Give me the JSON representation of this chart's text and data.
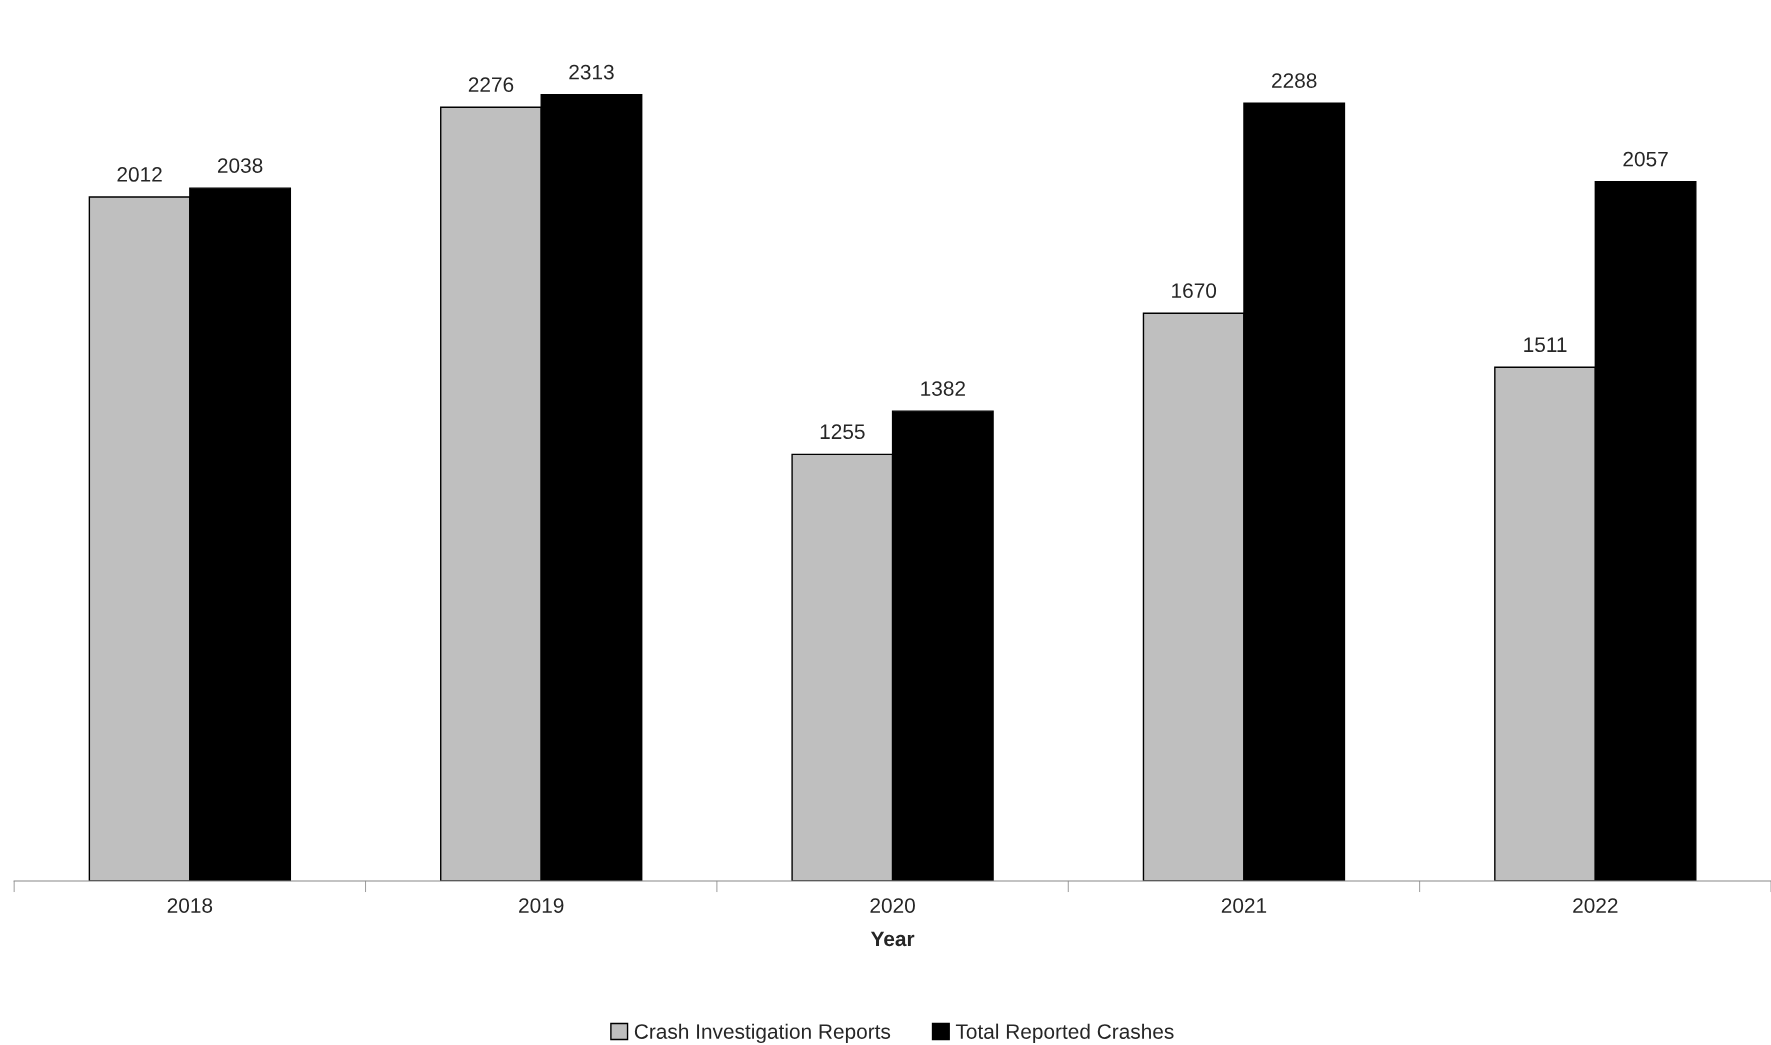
{
  "chart_data": {
    "type": "bar",
    "xlabel": "Year",
    "categories": [
      "2018",
      "2019",
      "2020",
      "2021",
      "2022"
    ],
    "series": [
      {
        "name": "Crash Investigation Reports",
        "color": "#bfbfbf",
        "values": [
          2012,
          2276,
          1255,
          1670,
          1511
        ]
      },
      {
        "name": "Total Reported Crashes",
        "color": "#000000",
        "values": [
          2038,
          2313,
          1382,
          2288,
          2057
        ]
      }
    ],
    "data_labels": true,
    "legend": "bottom",
    "grid": false,
    "tick_labels": "x"
  }
}
